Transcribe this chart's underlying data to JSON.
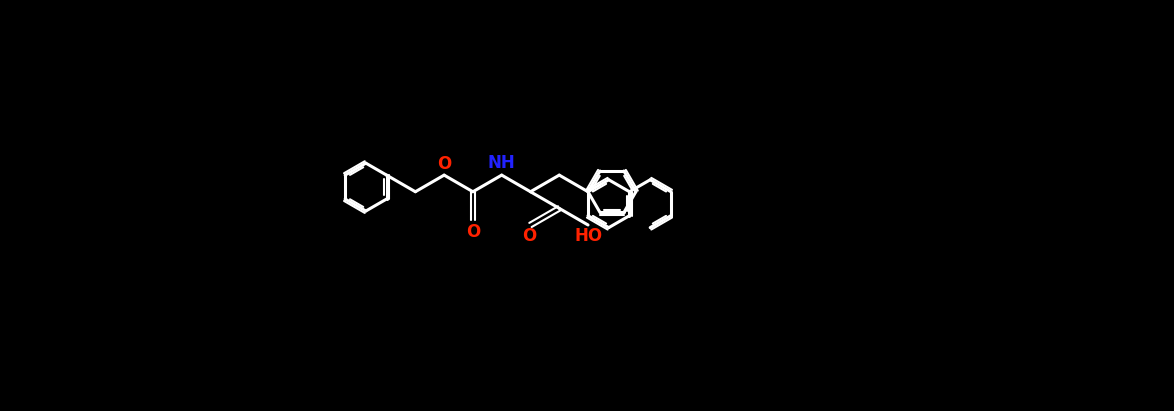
{
  "bg_color": "#000000",
  "bond_color": "#ffffff",
  "o_color": "#ff2200",
  "n_color": "#2222ff",
  "lw": 2.2,
  "lw2": 1.5,
  "figsize": [
    11.74,
    4.11
  ],
  "dpi": 100,
  "xlim": [
    0,
    114
  ],
  "ylim": [
    0,
    40
  ]
}
